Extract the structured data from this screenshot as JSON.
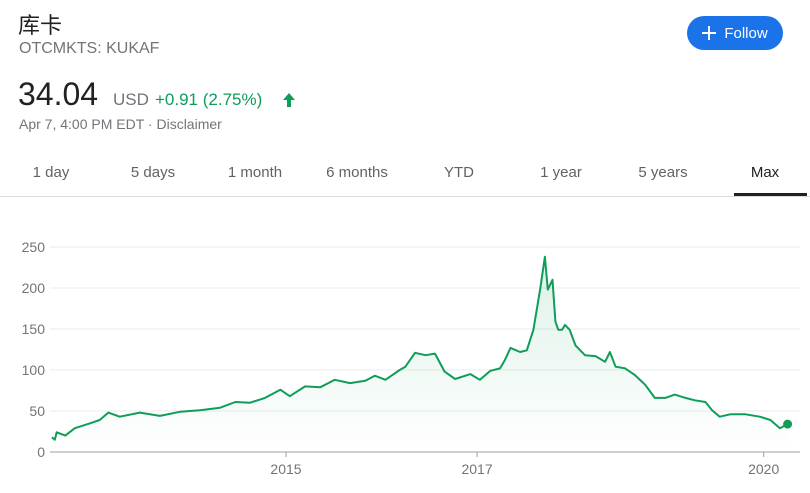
{
  "header": {
    "name": "库卡",
    "ticker": "OTCMKTS: KUKAF",
    "follow": "Follow"
  },
  "quote": {
    "price": "34.04",
    "currency": "USD",
    "change": "+0.91 (2.75%)",
    "timestamp": "Apr 7, 4:00 PM EDT",
    "separator": "·",
    "disclaimer": "Disclaimer"
  },
  "tabs": {
    "items": [
      "1 day",
      "5 days",
      "1 month",
      "6 months",
      "YTD",
      "1 year",
      "5 years",
      "Max"
    ],
    "selected": 7
  },
  "chart_data": {
    "type": "line",
    "color": "#0f9d58",
    "x": [
      2012.55,
      2012.58,
      2012.6,
      2012.69,
      2012.79,
      2012.95,
      2013.05,
      2013.14,
      2013.26,
      2013.47,
      2013.68,
      2013.89,
      2014.1,
      2014.31,
      2014.47,
      2014.62,
      2014.78,
      2014.94,
      2015.04,
      2015.2,
      2015.36,
      2015.51,
      2015.67,
      2015.83,
      2015.93,
      2016.04,
      2016.19,
      2016.25,
      2016.35,
      2016.46,
      2016.56,
      2016.66,
      2016.77,
      2016.93,
      2017.03,
      2017.14,
      2017.24,
      2017.29,
      2017.35,
      2017.45,
      2017.52,
      2017.59,
      2017.66,
      2017.71,
      2017.74,
      2017.79,
      2017.82,
      2017.85,
      2017.89,
      2017.92,
      2017.97,
      2018.03,
      2018.13,
      2018.24,
      2018.34,
      2018.39,
      2018.45,
      2018.55,
      2018.65,
      2018.76,
      2018.86,
      2018.97,
      2019.07,
      2019.18,
      2019.28,
      2019.39,
      2019.46,
      2019.54,
      2019.65,
      2019.81,
      2019.96,
      2020.07,
      2020.17,
      2020.25
    ],
    "values": [
      18,
      15,
      24,
      20,
      29,
      35,
      39,
      48,
      43,
      48,
      44,
      49,
      51,
      54,
      61,
      60,
      66,
      76,
      68,
      80,
      79,
      88,
      84,
      87,
      93,
      88,
      100,
      104,
      121,
      118,
      120,
      98,
      89,
      95,
      88,
      99,
      102,
      112,
      127,
      122,
      124,
      149,
      198,
      238,
      198,
      210,
      159,
      149,
      149,
      155,
      149,
      130,
      118,
      117,
      110,
      122,
      104,
      102,
      94,
      82,
      66,
      66,
      70,
      66,
      63,
      61,
      51,
      43,
      46,
      46,
      43,
      39,
      29,
      34
    ],
    "xlim": [
      2012.53,
      2020.38
    ],
    "ylim": [
      0,
      260
    ],
    "xticks": [
      2015,
      2017,
      2020
    ],
    "yticks": [
      0,
      50,
      100,
      150,
      200,
      250
    ],
    "grid": true
  }
}
